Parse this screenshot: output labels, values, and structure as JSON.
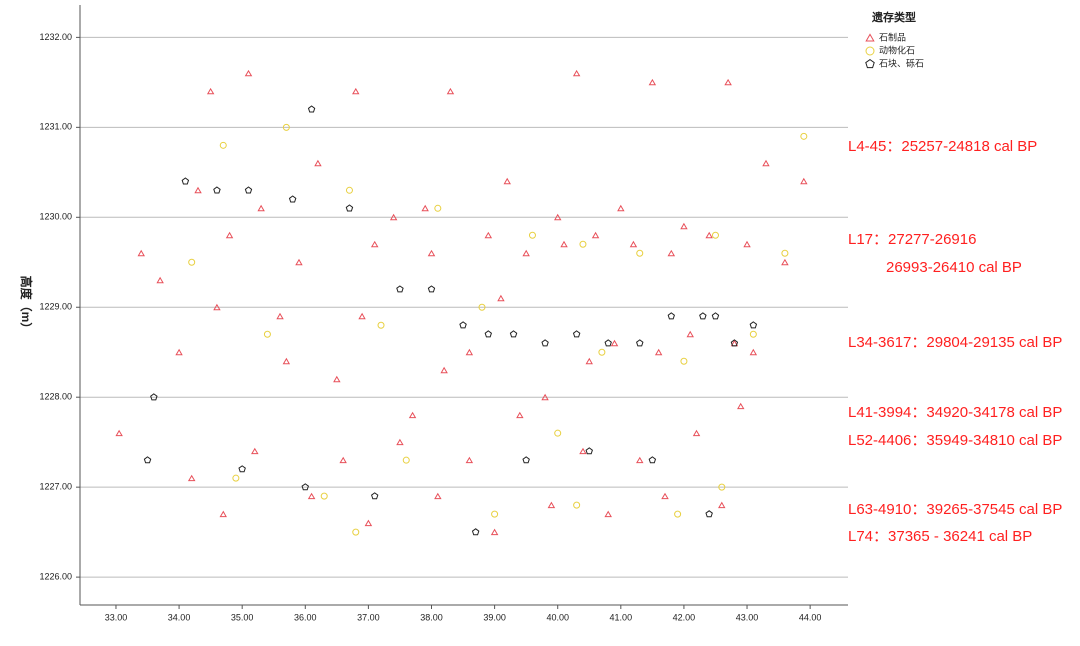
{
  "chart_data": {
    "type": "scatter",
    "ylabel": "高度（m）",
    "legend_title": "遗存类型",
    "legend": "right",
    "grid": true,
    "xlim": [
      32.43,
      44.6
    ],
    "ylim": [
      1225.69,
      1232.36
    ],
    "xticks": [
      {
        "value": 33,
        "label": "33.00"
      },
      {
        "value": 34,
        "label": "34.00"
      },
      {
        "value": 35,
        "label": "35.00"
      },
      {
        "value": 36,
        "label": "36.00"
      },
      {
        "value": 37,
        "label": "37.00"
      },
      {
        "value": 38,
        "label": "38.00"
      },
      {
        "value": 39,
        "label": "39.00"
      },
      {
        "value": 40,
        "label": "40.00"
      },
      {
        "value": 41,
        "label": "41.00"
      },
      {
        "value": 42,
        "label": "42.00"
      },
      {
        "value": 43,
        "label": "43.00"
      },
      {
        "value": 44,
        "label": "44.00"
      }
    ],
    "yticks": [
      {
        "value": 1226,
        "label": "1226.00"
      },
      {
        "value": 1227,
        "label": "1227.00"
      },
      {
        "value": 1228,
        "label": "1228.00"
      },
      {
        "value": 1229,
        "label": "1229.00"
      },
      {
        "value": 1230,
        "label": "1230.00"
      },
      {
        "value": 1231,
        "label": "1231.00"
      },
      {
        "value": 1232,
        "label": "1232.00"
      }
    ],
    "annotations": [
      "L4-45：25257-24818 cal BP",
      "L17：27277-26916",
      "26993-26410 cal BP",
      "L34-3617：29804-29135 cal BP",
      "L41-3994：34920-34178 cal BP",
      "L52-4406：35949-34810 cal BP",
      "L63-4910：39265-37545 cal BP",
      "L74：37365 - 36241 cal BP"
    ],
    "annotation_color": "#ff2020",
    "series": [
      {
        "name": "石制品",
        "color": "#e8505a",
        "marker": "triangle",
        "x": [
          33.05,
          33.4,
          33.7,
          34.0,
          34.3,
          34.5,
          34.8,
          35.1,
          35.3,
          35.6,
          35.9,
          36.2,
          36.5,
          36.8,
          37.1,
          37.4,
          37.7,
          38.0,
          38.3,
          38.6,
          38.9,
          39.2,
          39.5,
          39.8,
          40.1,
          40.3,
          40.6,
          40.9,
          41.2,
          41.5,
          41.8,
          42.1,
          42.4,
          42.7,
          43.0,
          43.3,
          43.6,
          43.9,
          34.2,
          34.7,
          35.2,
          35.7,
          36.1,
          36.6,
          37.0,
          37.5,
          38.1,
          38.6,
          39.0,
          39.4,
          39.9,
          40.4,
          40.8,
          41.3,
          41.7,
          42.2,
          42.6,
          42.9,
          43.1,
          38.2,
          40.5,
          41.6,
          42.8,
          36.9,
          39.1,
          34.6,
          40.0,
          41.0,
          37.9,
          42.0
        ],
        "y": [
          1227.6,
          1229.6,
          1229.3,
          1228.5,
          1230.3,
          1231.4,
          1229.8,
          1231.6,
          1230.1,
          1228.9,
          1229.5,
          1230.6,
          1228.2,
          1231.4,
          1229.7,
          1230.0,
          1227.8,
          1229.6,
          1231.4,
          1228.5,
          1229.8,
          1230.4,
          1229.6,
          1228.0,
          1229.7,
          1231.6,
          1229.8,
          1228.6,
          1229.7,
          1231.5,
          1229.6,
          1228.7,
          1229.8,
          1231.5,
          1229.7,
          1230.6,
          1229.5,
          1230.4,
          1227.1,
          1226.7,
          1227.4,
          1228.4,
          1226.9,
          1227.3,
          1226.6,
          1227.5,
          1226.9,
          1227.3,
          1226.5,
          1227.8,
          1226.8,
          1227.4,
          1226.7,
          1227.3,
          1226.9,
          1227.6,
          1226.8,
          1227.9,
          1228.5,
          1228.3,
          1228.4,
          1228.5,
          1228.6,
          1228.9,
          1229.1,
          1229.0,
          1230.0,
          1230.1,
          1230.1,
          1229.9
        ]
      },
      {
        "name": "动物化石",
        "color": "#e8d040",
        "marker": "circle",
        "x": [
          34.7,
          35.7,
          36.7,
          38.1,
          39.6,
          40.4,
          41.3,
          42.5,
          43.6,
          43.9,
          34.2,
          35.4,
          37.2,
          38.8,
          40.7,
          42.0,
          43.1,
          34.9,
          36.3,
          37.6,
          39.0,
          40.3,
          41.9,
          42.6,
          36.8,
          40.0
        ],
        "y": [
          1230.8,
          1231.0,
          1230.3,
          1230.1,
          1229.8,
          1229.7,
          1229.6,
          1229.8,
          1229.6,
          1230.9,
          1229.5,
          1228.7,
          1228.8,
          1229.0,
          1228.5,
          1228.4,
          1228.7,
          1227.1,
          1226.9,
          1227.3,
          1226.7,
          1226.8,
          1226.7,
          1227.0,
          1226.5,
          1227.6
        ]
      },
      {
        "name": "石块、砾石",
        "color": "#222222",
        "marker": "pentagon",
        "x": [
          33.5,
          33.6,
          34.1,
          34.6,
          35.1,
          35.8,
          36.1,
          36.7,
          37.5,
          38.0,
          38.5,
          38.9,
          39.3,
          39.8,
          40.3,
          40.8,
          41.3,
          41.8,
          42.3,
          42.5,
          42.8,
          43.1,
          35.0,
          36.0,
          37.1,
          38.7,
          39.5,
          40.5,
          41.5,
          42.4
        ],
        "y": [
          1227.3,
          1228.0,
          1230.4,
          1230.3,
          1230.3,
          1230.2,
          1231.2,
          1230.1,
          1229.2,
          1229.2,
          1228.8,
          1228.7,
          1228.7,
          1228.6,
          1228.7,
          1228.6,
          1228.6,
          1228.9,
          1228.9,
          1228.9,
          1228.6,
          1228.8,
          1227.2,
          1227.0,
          1226.9,
          1226.5,
          1227.3,
          1227.4,
          1227.3,
          1226.7
        ]
      }
    ]
  }
}
